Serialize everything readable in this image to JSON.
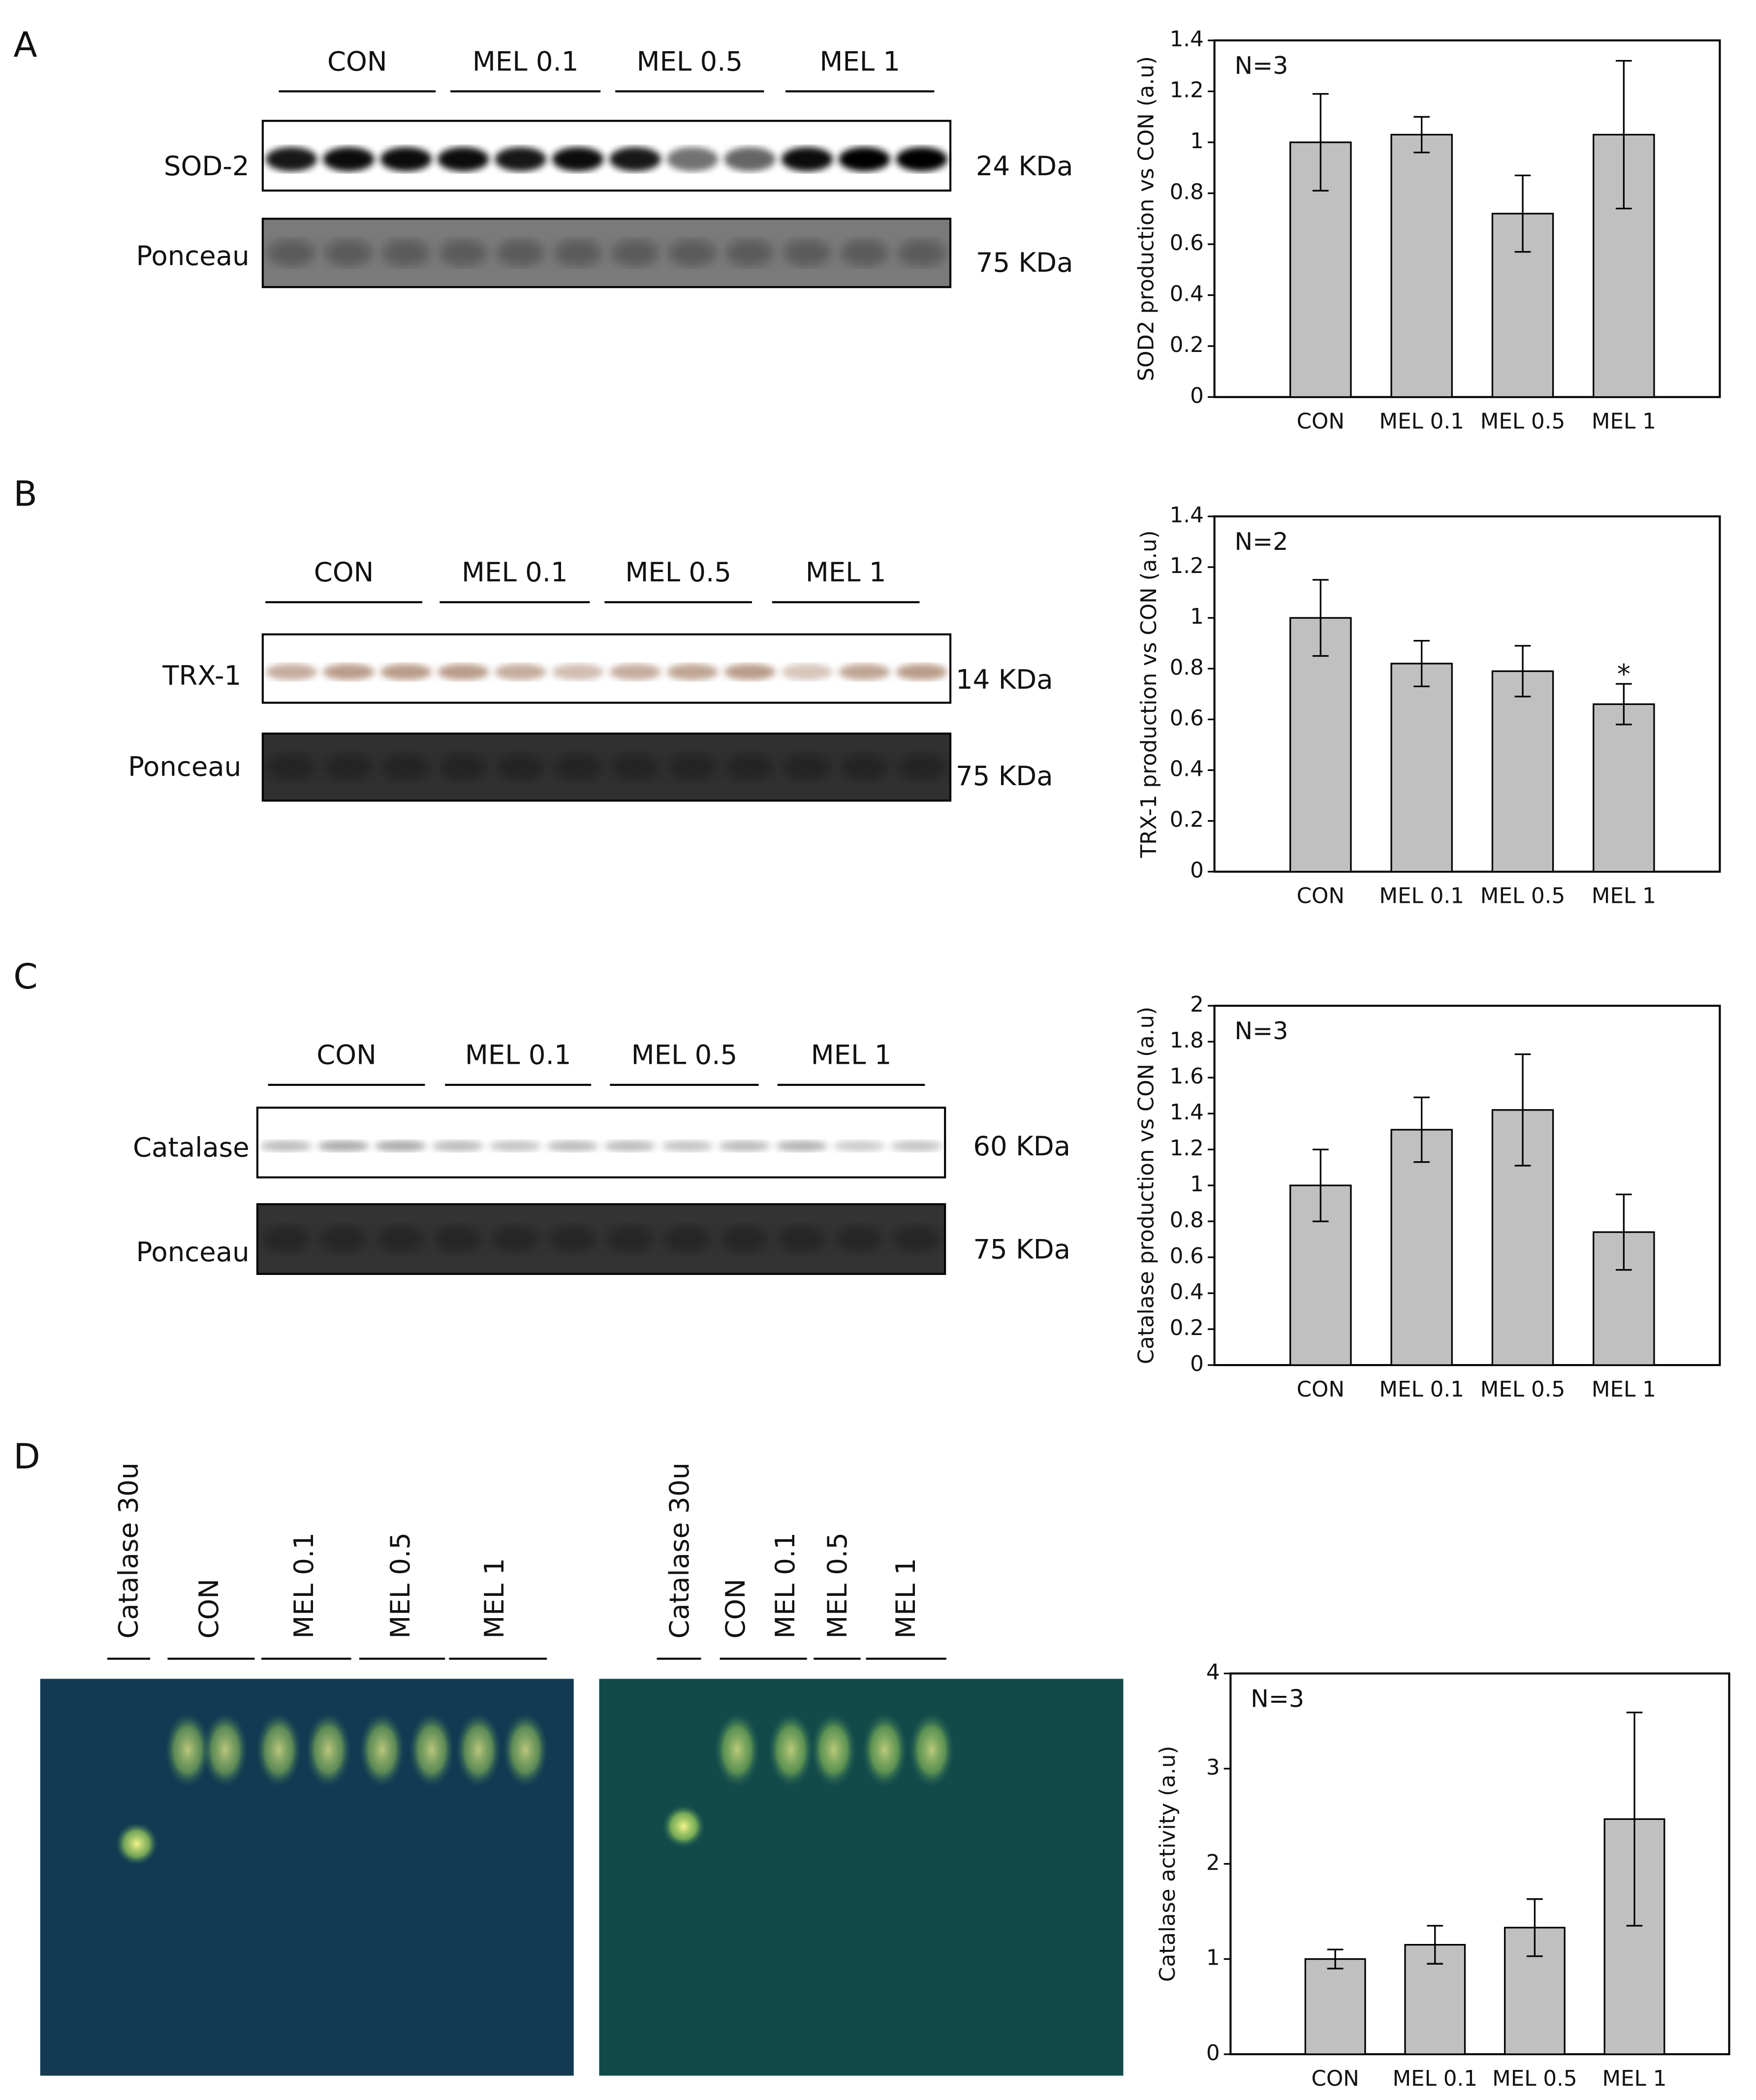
{
  "blots": [
    {
      "letter": "A",
      "groups": [
        "CON",
        "MEL 0.1",
        "MEL 0.5",
        "MEL 1"
      ],
      "protein": "SOD-2",
      "protein_kda": "24 KDa",
      "loading": "Ponceau",
      "loading_kda": "75 KDa"
    },
    {
      "letter": "B",
      "groups": [
        "CON",
        "MEL 0.1",
        "MEL 0.5",
        "MEL 1"
      ],
      "protein": "TRX-1",
      "protein_kda": "14 KDa",
      "loading": "Ponceau",
      "loading_kda": "75 KDa"
    },
    {
      "letter": "C",
      "groups": [
        "CON",
        "MEL 0.1",
        "MEL 0.5",
        "MEL 1"
      ],
      "protein": "Catalase",
      "protein_kda": "60 KDa",
      "loading": "Ponceau",
      "loading_kda": "75 KDa"
    }
  ],
  "gels": {
    "letter": "D",
    "left_lanes": [
      "Catalase 30u",
      "CON",
      "MEL 0.1",
      "MEL 0.5",
      "MEL 1"
    ],
    "right_lanes": [
      "Catalase 30u",
      "CON",
      "MEL 0.1",
      "MEL 0.5",
      "MEL 1"
    ]
  },
  "chart_data": [
    {
      "type": "bar",
      "ylabel": "SOD2 production vs CON (a.u)",
      "annotation": "N=3",
      "categories": [
        "CON",
        "MEL 0.1",
        "MEL 0.5",
        "MEL 1"
      ],
      "values": [
        1.0,
        1.03,
        0.72,
        1.03
      ],
      "errors": [
        0.19,
        0.07,
        0.15,
        0.29
      ],
      "color": "#c0c0c0",
      "ylim": [
        0,
        1.4
      ],
      "yticks": [
        0,
        0.2,
        0.4,
        0.6,
        0.8,
        1,
        1.2,
        1.4
      ]
    },
    {
      "type": "bar",
      "ylabel": "TRX-1 production vs CON (a.u)",
      "annotation": "N=2",
      "categories": [
        "CON",
        "MEL 0.1",
        "MEL 0.5",
        "MEL 1"
      ],
      "values": [
        1.0,
        0.82,
        0.79,
        0.66
      ],
      "errors": [
        0.15,
        0.09,
        0.1,
        0.08
      ],
      "marker_labels": [
        null,
        null,
        null,
        "*"
      ],
      "color": "#c0c0c0",
      "ylim": [
        0,
        1.4
      ],
      "yticks": [
        0,
        0.2,
        0.4,
        0.6,
        0.8,
        1,
        1.2,
        1.4
      ]
    },
    {
      "type": "bar",
      "ylabel": "Catalase production vs CON (a.u)",
      "annotation": "N=3",
      "categories": [
        "CON",
        "MEL 0.1",
        "MEL 0.5",
        "MEL 1"
      ],
      "values": [
        1.0,
        1.31,
        1.42,
        0.74
      ],
      "errors": [
        0.2,
        0.18,
        0.31,
        0.21
      ],
      "color": "#c0c0c0",
      "ylim": [
        0,
        2
      ],
      "yticks": [
        0,
        0.2,
        0.4,
        0.6,
        0.8,
        1,
        1.2,
        1.4,
        1.6,
        1.8,
        2
      ]
    },
    {
      "type": "bar",
      "ylabel": "Catalase activity (a.u)",
      "annotation": "N=3",
      "categories": [
        "CON",
        "MEL 0.1",
        "MEL 0.5",
        "MEL 1"
      ],
      "values": [
        1.0,
        1.15,
        1.33,
        2.47
      ],
      "errors": [
        0.1,
        0.2,
        0.3,
        1.12
      ],
      "color": "#c0c0c0",
      "ylim": [
        0,
        4
      ],
      "yticks": [
        0,
        1,
        2,
        3,
        4
      ]
    }
  ]
}
